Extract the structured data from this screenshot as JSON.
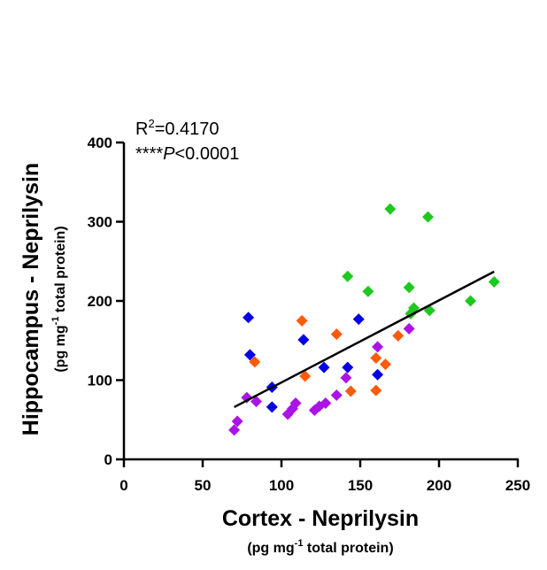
{
  "chart_data": {
    "type": "scatter",
    "title": "",
    "xlabel": "Cortex - Neprilysin",
    "xlabel_units": {
      "pre": "(pg mg",
      "sup": "-1",
      "post": " total protein)"
    },
    "ylabel": "Hippocampus - Neprilysin",
    "ylabel_units": {
      "pre": "(pg mg",
      "sup": "-1",
      "post": " total protein)"
    },
    "xlim": [
      0,
      250
    ],
    "ylim": [
      0,
      400
    ],
    "xticks": [
      0,
      50,
      100,
      150,
      200,
      250
    ],
    "yticks": [
      0,
      100,
      200,
      300,
      400
    ],
    "grid": false,
    "annotations": {
      "r2": {
        "base": "R",
        "sup": "2",
        "rest": "=0.4170"
      },
      "p": {
        "stars": "****",
        "italic": "P",
        "rest": "<0.0001"
      }
    },
    "regression": {
      "x": [
        70,
        235
      ],
      "y": [
        66,
        237
      ]
    },
    "series": [
      {
        "color": "#0000e6",
        "points": [
          [
            79,
            179
          ],
          [
            80,
            132
          ],
          [
            94,
            91
          ],
          [
            94,
            66
          ],
          [
            114,
            151
          ],
          [
            127,
            116
          ],
          [
            142,
            116
          ],
          [
            149,
            177
          ],
          [
            161,
            107
          ]
        ]
      },
      {
        "color": "#ff5a0a",
        "points": [
          [
            83,
            123
          ],
          [
            113,
            175
          ],
          [
            115,
            105
          ],
          [
            135,
            158
          ],
          [
            144,
            86
          ],
          [
            160,
            87
          ],
          [
            160,
            128
          ],
          [
            166,
            120
          ],
          [
            174,
            156
          ]
        ]
      },
      {
        "color": "#1ec81e",
        "points": [
          [
            142,
            231
          ],
          [
            155,
            212
          ],
          [
            169,
            316
          ],
          [
            181,
            217
          ],
          [
            182,
            184
          ],
          [
            184,
            191
          ],
          [
            193,
            306
          ],
          [
            194,
            188
          ],
          [
            220,
            200
          ],
          [
            235,
            224
          ]
        ]
      },
      {
        "color": "#aa14e6",
        "points": [
          [
            70,
            37
          ],
          [
            72,
            48
          ],
          [
            78,
            78
          ],
          [
            84,
            73
          ],
          [
            104,
            57
          ],
          [
            107,
            64
          ],
          [
            109,
            71
          ],
          [
            121,
            62
          ],
          [
            124,
            67
          ],
          [
            128,
            71
          ],
          [
            135,
            81
          ],
          [
            141,
            103
          ],
          [
            161,
            142
          ],
          [
            181,
            165
          ]
        ]
      }
    ]
  }
}
